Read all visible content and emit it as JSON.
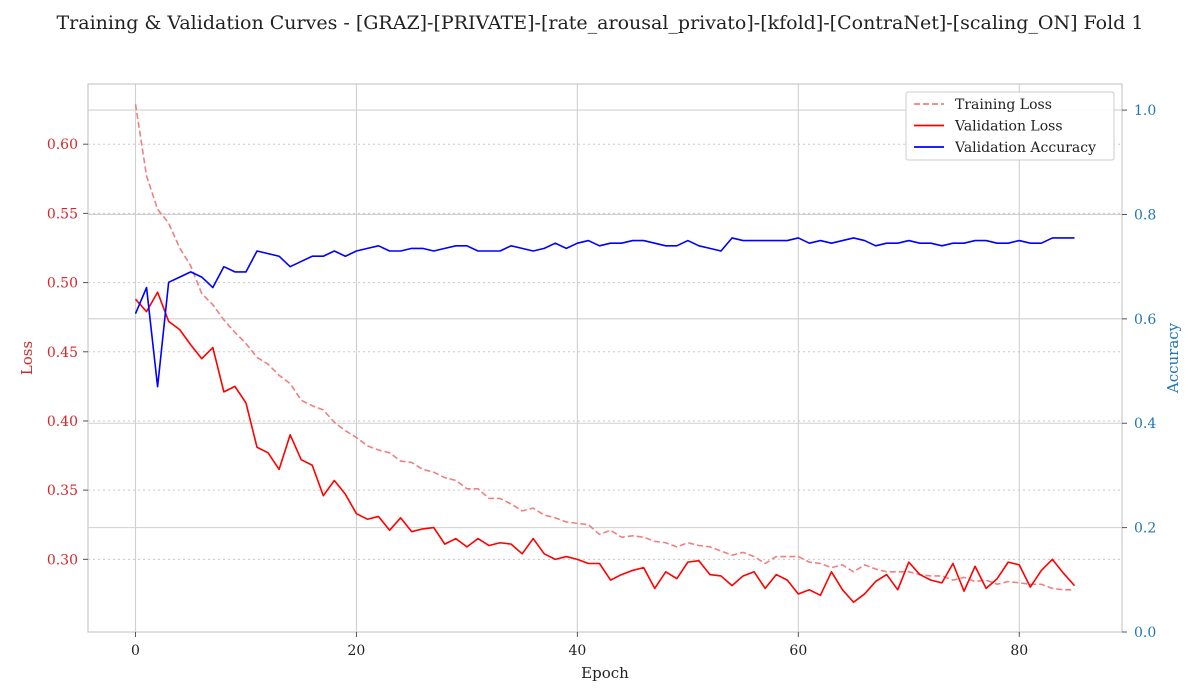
{
  "chart_data": {
    "type": "line",
    "title": "Training & Validation Curves - [GRAZ]-[PRIVATE]-[rate_arousal_privato]-[kfold]-[ContraNet]-[scaling_ON] Fold 1",
    "xlabel": "Epoch",
    "ylabel_left": "Loss",
    "ylabel_right": "Accuracy",
    "xlim": [
      -4.3,
      89.3
    ],
    "ylim_left": [
      0.2475,
      0.6435
    ],
    "ylim_right": [
      0.0,
      1.05
    ],
    "x_ticks": [
      0,
      20,
      40,
      60,
      80
    ],
    "y_ticks_left": [
      0.3,
      0.35,
      0.4,
      0.45,
      0.5,
      0.55,
      0.6
    ],
    "y_ticks_left_labels": [
      "0.30",
      "0.35",
      "0.40",
      "0.45",
      "0.50",
      "0.55",
      "0.60"
    ],
    "y_ticks_right": [
      0.0,
      0.2,
      0.4,
      0.6,
      0.8,
      1.0
    ],
    "y_ticks_right_labels": [
      "0.0",
      "0.2",
      "0.4",
      "0.6",
      "0.8",
      "1.0"
    ],
    "grid": true,
    "legend_position": "top-right",
    "colors": {
      "training_loss": "#f08080",
      "validation_loss": "#ff0000",
      "validation_accuracy": "#0000ff",
      "left_axis": "#d62728",
      "right_axis": "#1f77b4"
    },
    "series": [
      {
        "name": "Training Loss",
        "axis": "left",
        "style": "dashed",
        "x": [
          0,
          1,
          2,
          3,
          4,
          5,
          6,
          7,
          8,
          9,
          10,
          11,
          12,
          13,
          14,
          15,
          16,
          17,
          18,
          19,
          20,
          21,
          22,
          23,
          24,
          25,
          26,
          27,
          28,
          29,
          30,
          31,
          32,
          33,
          34,
          35,
          36,
          37,
          38,
          39,
          40,
          41,
          42,
          43,
          44,
          45,
          46,
          47,
          48,
          49,
          50,
          51,
          52,
          53,
          54,
          55,
          56,
          57,
          58,
          59,
          60,
          61,
          62,
          63,
          64,
          65,
          66,
          67,
          68,
          69,
          70,
          71,
          72,
          73,
          74,
          75,
          76,
          77,
          78,
          79,
          80,
          81,
          82,
          83,
          84,
          85
        ],
        "values": [
          0.629,
          0.577,
          0.553,
          0.543,
          0.525,
          0.512,
          0.492,
          0.484,
          0.473,
          0.464,
          0.456,
          0.446,
          0.441,
          0.433,
          0.427,
          0.415,
          0.411,
          0.408,
          0.399,
          0.393,
          0.388,
          0.382,
          0.379,
          0.377,
          0.371,
          0.37,
          0.365,
          0.363,
          0.359,
          0.357,
          0.351,
          0.351,
          0.344,
          0.344,
          0.34,
          0.335,
          0.337,
          0.332,
          0.33,
          0.327,
          0.326,
          0.325,
          0.318,
          0.321,
          0.316,
          0.317,
          0.316,
          0.313,
          0.312,
          0.309,
          0.312,
          0.31,
          0.309,
          0.306,
          0.303,
          0.305,
          0.302,
          0.297,
          0.302,
          0.302,
          0.302,
          0.298,
          0.297,
          0.294,
          0.296,
          0.291,
          0.296,
          0.293,
          0.291,
          0.291,
          0.291,
          0.289,
          0.288,
          0.288,
          0.285,
          0.287,
          0.284,
          0.285,
          0.282,
          0.284,
          0.283,
          0.282,
          0.282,
          0.279,
          0.278,
          0.278
        ]
      },
      {
        "name": "Validation Loss",
        "axis": "left",
        "style": "solid",
        "x": [
          0,
          1,
          2,
          3,
          4,
          5,
          6,
          7,
          8,
          9,
          10,
          11,
          12,
          13,
          14,
          15,
          16,
          17,
          18,
          19,
          20,
          21,
          22,
          23,
          24,
          25,
          26,
          27,
          28,
          29,
          30,
          31,
          32,
          33,
          34,
          35,
          36,
          37,
          38,
          39,
          40,
          41,
          42,
          43,
          44,
          45,
          46,
          47,
          48,
          49,
          50,
          51,
          52,
          53,
          54,
          55,
          56,
          57,
          58,
          59,
          60,
          61,
          62,
          63,
          64,
          65,
          66,
          67,
          68,
          69,
          70,
          71,
          72,
          73,
          74,
          75,
          76,
          77,
          78,
          79,
          80,
          81,
          82,
          83,
          84,
          85
        ],
        "values": [
          0.488,
          0.479,
          0.493,
          0.472,
          0.466,
          0.455,
          0.445,
          0.453,
          0.421,
          0.425,
          0.413,
          0.381,
          0.377,
          0.365,
          0.39,
          0.372,
          0.368,
          0.346,
          0.357,
          0.347,
          0.333,
          0.329,
          0.331,
          0.321,
          0.33,
          0.32,
          0.322,
          0.323,
          0.311,
          0.315,
          0.309,
          0.315,
          0.31,
          0.312,
          0.311,
          0.304,
          0.315,
          0.304,
          0.3,
          0.302,
          0.3,
          0.297,
          0.297,
          0.285,
          0.289,
          0.292,
          0.294,
          0.279,
          0.291,
          0.286,
          0.298,
          0.299,
          0.289,
          0.288,
          0.281,
          0.288,
          0.291,
          0.279,
          0.289,
          0.285,
          0.275,
          0.278,
          0.274,
          0.291,
          0.278,
          0.269,
          0.275,
          0.284,
          0.289,
          0.278,
          0.298,
          0.289,
          0.285,
          0.283,
          0.297,
          0.277,
          0.295,
          0.279,
          0.286,
          0.298,
          0.296,
          0.28,
          0.292,
          0.3,
          0.29,
          0.281
        ]
      },
      {
        "name": "Validation Accuracy",
        "axis": "right",
        "style": "solid",
        "x": [
          0,
          1,
          2,
          3,
          4,
          5,
          6,
          7,
          8,
          9,
          10,
          11,
          12,
          13,
          14,
          15,
          16,
          17,
          18,
          19,
          20,
          21,
          22,
          23,
          24,
          25,
          26,
          27,
          28,
          29,
          30,
          31,
          32,
          33,
          34,
          35,
          36,
          37,
          38,
          39,
          40,
          41,
          42,
          43,
          44,
          45,
          46,
          47,
          48,
          49,
          50,
          51,
          52,
          53,
          54,
          55,
          56,
          57,
          58,
          59,
          60,
          61,
          62,
          63,
          64,
          65,
          66,
          67,
          68,
          69,
          70,
          71,
          72,
          73,
          74,
          75,
          76,
          77,
          78,
          79,
          80,
          81,
          82,
          83,
          84,
          85
        ],
        "values": [
          0.61,
          0.66,
          0.47,
          0.67,
          0.68,
          0.69,
          0.68,
          0.66,
          0.7,
          0.69,
          0.69,
          0.73,
          0.725,
          0.72,
          0.7,
          0.71,
          0.72,
          0.72,
          0.73,
          0.72,
          0.73,
          0.735,
          0.74,
          0.73,
          0.73,
          0.735,
          0.735,
          0.73,
          0.735,
          0.74,
          0.74,
          0.73,
          0.73,
          0.73,
          0.74,
          0.735,
          0.73,
          0.735,
          0.745,
          0.735,
          0.745,
          0.75,
          0.74,
          0.745,
          0.745,
          0.75,
          0.75,
          0.745,
          0.74,
          0.74,
          0.75,
          0.74,
          0.735,
          0.73,
          0.755,
          0.75,
          0.75,
          0.75,
          0.75,
          0.75,
          0.755,
          0.745,
          0.75,
          0.745,
          0.75,
          0.755,
          0.75,
          0.74,
          0.745,
          0.745,
          0.75,
          0.745,
          0.745,
          0.74,
          0.745,
          0.745,
          0.75,
          0.75,
          0.745,
          0.745,
          0.75,
          0.745,
          0.745,
          0.755,
          0.755,
          0.755
        ]
      }
    ]
  }
}
